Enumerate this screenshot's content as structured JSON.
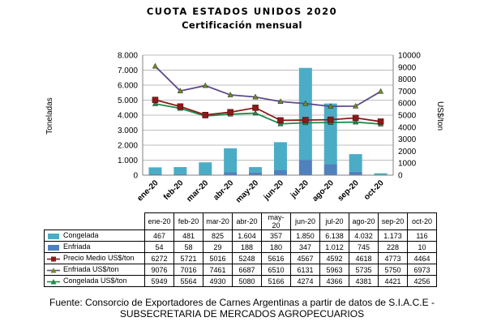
{
  "title": "CUOTA ESTADOS UNIDOS 2020",
  "subtitle": "Certificación mensual",
  "source": {
    "line1": "Fuente: Consorcio de Exportadores de Carnes Argentinas a partir de datos de S.I.A.C.E -",
    "line2": "SUBSECRETARIA DE MERCADOS AGROPECUARIOS"
  },
  "colors": {
    "congelada": "#4bacc6",
    "enfriada": "#4f81bd",
    "precio": "#8b1a1a",
    "enfriada_usd": "#5f4b8b",
    "congelada_usd": "#1e8c4a"
  },
  "chart_data": {
    "type": "bar",
    "categories": [
      "ene-20",
      "feb-20",
      "mar-20",
      "abr-20",
      "may-20",
      "jun-20",
      "jul-20",
      "ago-20",
      "sep-20",
      "oct-20"
    ],
    "category_labels": [
      "ene-20",
      "feb-20",
      "mar-20",
      "abr-20",
      "may-\n20",
      "jun-20",
      "jul-20",
      "ago-20",
      "sep-20",
      "oct-20"
    ],
    "series": [
      {
        "name": "Congelada",
        "type": "bar",
        "axis": "left",
        "values": [
          467,
          481,
          825,
          1604,
          357,
          1850,
          6138,
          4032,
          1173,
          116
        ],
        "labels": [
          "467",
          "481",
          "825",
          "1.604",
          "357",
          "1.850",
          "6.138",
          "4.032",
          "1.173",
          "116"
        ]
      },
      {
        "name": "Enfriada",
        "type": "bar",
        "axis": "left",
        "values": [
          54,
          58,
          29,
          188,
          180,
          347,
          1012,
          745,
          228,
          10
        ],
        "labels": [
          "54",
          "58",
          "29",
          "188",
          "180",
          "347",
          "1.012",
          "745",
          "228",
          "10"
        ]
      },
      {
        "name": "Precio Medio US$/ton",
        "type": "line",
        "axis": "right",
        "marker": "square",
        "values": [
          6272,
          5721,
          5016,
          5248,
          5616,
          4567,
          4592,
          4618,
          4773,
          4464
        ],
        "labels": [
          "6272",
          "5721",
          "5016",
          "5248",
          "5616",
          "4567",
          "4592",
          "4618",
          "4773",
          "4464"
        ]
      },
      {
        "name": "Enfriada US$/ton",
        "type": "line",
        "axis": "right",
        "marker": "triangle",
        "values": [
          9076,
          7016,
          7461,
          6687,
          6510,
          6131,
          5963,
          5735,
          5750,
          6973
        ],
        "labels": [
          "9076",
          "7016",
          "7461",
          "6687",
          "6510",
          "6131",
          "5963",
          "5735",
          "5750",
          "6973"
        ]
      },
      {
        "name": "Congelada US$/ton",
        "type": "line",
        "axis": "right",
        "marker": "triangle",
        "values": [
          5949,
          5564,
          4930,
          5080,
          5166,
          4274,
          4366,
          4381,
          4421,
          4256
        ],
        "labels": [
          "5949",
          "5564",
          "4930",
          "5080",
          "5166",
          "4274",
          "4366",
          "4381",
          "4421",
          "4256"
        ]
      }
    ],
    "y_left": {
      "label": "Toneladas",
      "ylim": [
        0,
        8000
      ],
      "ticks": [
        "0",
        "1.000",
        "2.000",
        "3.000",
        "4.000",
        "5.000",
        "6.000",
        "7.000",
        "8.000"
      ]
    },
    "y_right": {
      "label": "US$/ton",
      "ylim": [
        0,
        10000
      ],
      "ticks": [
        "0",
        "1000",
        "2000",
        "3000",
        "4000",
        "5000",
        "6000",
        "7000",
        "8000",
        "9000",
        "10000"
      ]
    },
    "grid": true,
    "legend": "table-below"
  }
}
